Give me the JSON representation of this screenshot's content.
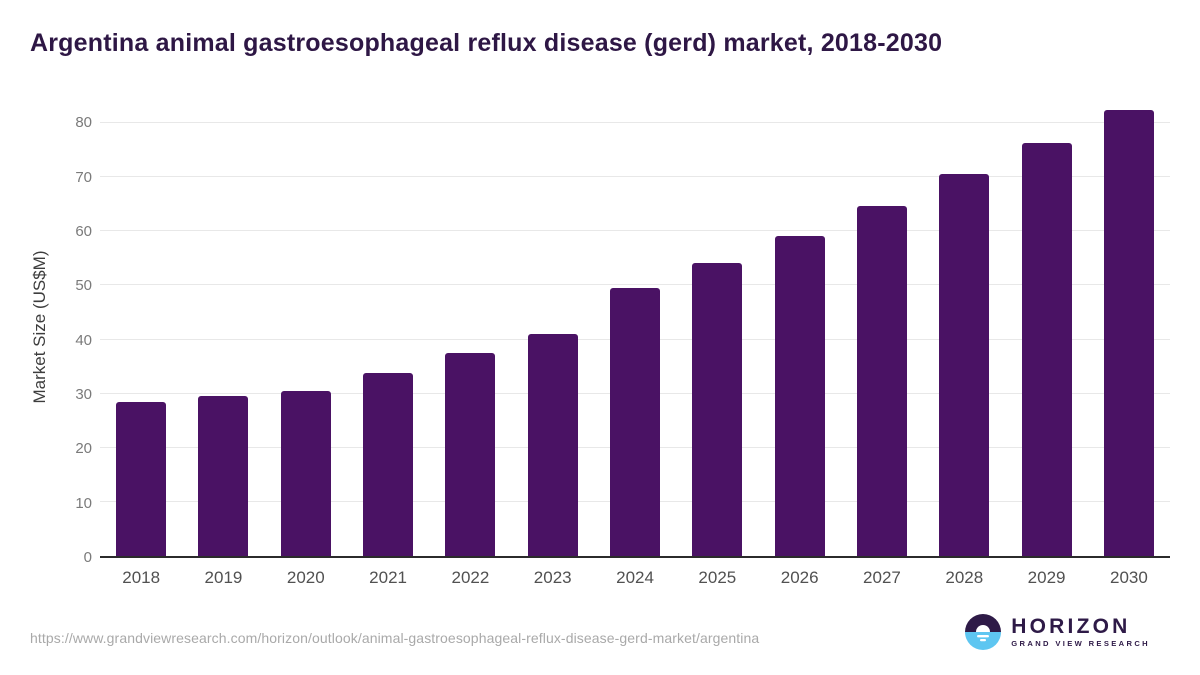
{
  "header": {
    "title": "Argentina animal gastroesophageal reflux disease (gerd) market, 2018-2030",
    "title_color": "#2e1745"
  },
  "chart_data": {
    "type": "bar",
    "title": "Argentina animal gastroesophageal reflux disease (gerd) market, 2018-2030",
    "categories": [
      "2018",
      "2019",
      "2020",
      "2021",
      "2022",
      "2023",
      "2024",
      "2025",
      "2026",
      "2027",
      "2028",
      "2029",
      "2030"
    ],
    "values": [
      28.5,
      29.5,
      30.4,
      33.8,
      37.5,
      41.0,
      49.5,
      54.2,
      59.2,
      64.7,
      70.5,
      76.3,
      82.5
    ],
    "xlabel": "",
    "ylabel": "Market Size (US$M)",
    "ylim": [
      0,
      85
    ],
    "yticks": [
      0,
      10,
      20,
      30,
      40,
      50,
      60,
      70,
      80
    ],
    "grid": true,
    "legend_position": "none",
    "bar_color": "#4a1264",
    "gridline_color": "#e8e8e8",
    "axis_line_color": "#2b2b2b"
  },
  "footer": {
    "source_url": "https://www.grandviewresearch.com/horizon/outlook/animal-gastroesophageal-reflux-disease-gerd-market/argentina",
    "logo": {
      "name": "HORIZON",
      "subtitle": "GRAND VIEW RESEARCH",
      "circle_top_color": "#2e1a47",
      "circle_bottom_color": "#5ec6f1"
    }
  }
}
